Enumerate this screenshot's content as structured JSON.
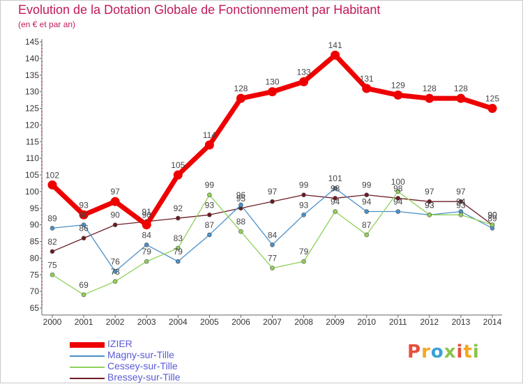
{
  "header": {
    "title": "Evolution de la Dotation Globale de Fonctionnement par Habitant",
    "subtitle": "(en € et par an)"
  },
  "logo": {
    "text": "Proxiti",
    "colors": [
      "#e94e3a",
      "#f5a623",
      "#3aa0d8",
      "#8bc34a",
      "#e94e3a",
      "#f5a623",
      "#8bc34a"
    ]
  },
  "chart_data": {
    "type": "line",
    "title": "Evolution de la Dotation Globale de Fonctionnement par Habitant",
    "subtitle": "(en € et par an)",
    "xlabel": "",
    "ylabel": "",
    "x": [
      "2000",
      "2001",
      "2002",
      "2003",
      "2004",
      "2005",
      "2006",
      "2007",
      "2008",
      "2009",
      "2010",
      "2011",
      "2012",
      "2013",
      "2014"
    ],
    "ylim": [
      65,
      145
    ],
    "yticks": [
      65,
      70,
      75,
      80,
      85,
      90,
      95,
      100,
      105,
      110,
      115,
      120,
      125,
      130,
      135,
      140,
      145
    ],
    "grid": false,
    "legend_position": "bottom-left",
    "series": [
      {
        "name": "IZIER",
        "color": "#ee0000",
        "values": [
          102,
          93,
          97,
          90,
          105,
          114,
          128,
          130,
          133,
          141,
          131,
          129,
          128,
          128,
          125
        ]
      },
      {
        "name": "Magny-sur-Tille",
        "color": "#4a90c8",
        "values": [
          89,
          90,
          76,
          84,
          79,
          87,
          96,
          84,
          93,
          101,
          94,
          94,
          93,
          94,
          89
        ]
      },
      {
        "name": "Cessey-sur-Tille",
        "color": "#8fd05a",
        "values": [
          75,
          69,
          73,
          79,
          83,
          99,
          88,
          77,
          79,
          94,
          87,
          100,
          93,
          93,
          90
        ]
      },
      {
        "name": "Bressey-sur-Tille",
        "color": "#6b1c24",
        "values": [
          82,
          86,
          90,
          91,
          92,
          93,
          95,
          97,
          99,
          98,
          99,
          98,
          97,
          97,
          90
        ]
      }
    ]
  }
}
